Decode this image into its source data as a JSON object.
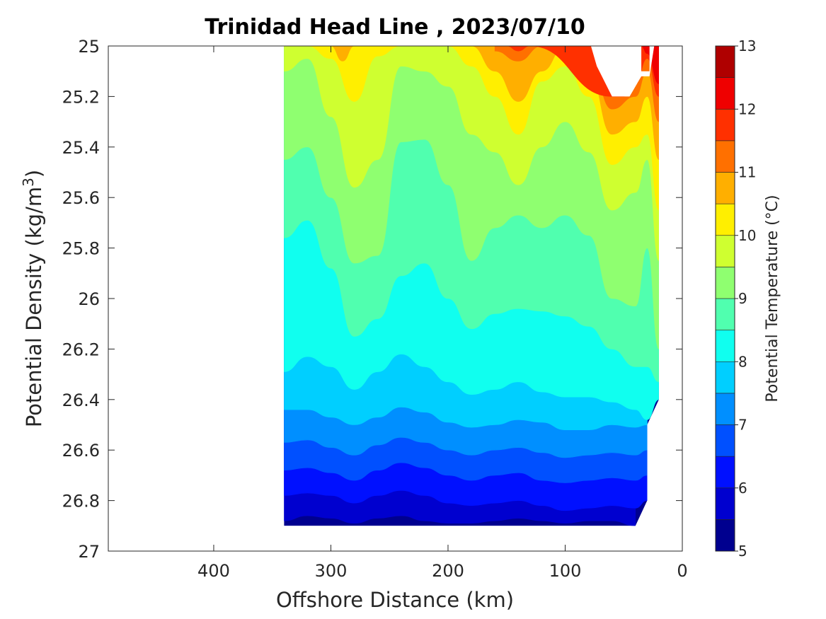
{
  "chart_data": {
    "type": "filled-contour",
    "title": "Trinidad Head Line , 2023/07/10",
    "xlabel": "Offshore Distance (km)",
    "ylabel_main": "Potential Density (kg/m",
    "ylabel_sup": "3",
    "ylabel_end": ")",
    "xlim": [
      490,
      0
    ],
    "ylim": [
      25,
      27
    ],
    "y_reversed": true,
    "xticks": [
      400,
      300,
      200,
      100,
      0
    ],
    "yticks": [
      25,
      25.2,
      25.4,
      25.6,
      25.8,
      26,
      26.2,
      26.4,
      26.6,
      26.8,
      27
    ],
    "ytick_labels": [
      "25",
      "25.2",
      "25.4",
      "25.6",
      "25.8",
      "26",
      "26.2",
      "26.4",
      "26.6",
      "26.8",
      "27"
    ],
    "data_extent": {
      "x": [
        340,
        20
      ],
      "y": [
        25,
        26.9
      ]
    },
    "colorbar": {
      "label": "Potential Temperature (°C)",
      "min": 5,
      "max": 13,
      "ticks": [
        5,
        6,
        7,
        8,
        9,
        10,
        11,
        12,
        13
      ],
      "levels": [
        5,
        5.5,
        6,
        6.5,
        7,
        7.5,
        8,
        8.5,
        9,
        9.5,
        10,
        10.5,
        11,
        11.5,
        12,
        12.5,
        13
      ],
      "colors": [
        "#00008f",
        "#0000cf",
        "#0010ff",
        "#0050ff",
        "#008fff",
        "#00cfff",
        "#10ffef",
        "#50ffaf",
        "#8fff70",
        "#cfff30",
        "#ffef00",
        "#ffaf00",
        "#ff7000",
        "#ff3000",
        "#ef0000",
        "#af0000"
      ]
    },
    "isotherms": [
      {
        "level": 5.5,
        "x": [
          340,
          320,
          300,
          280,
          260,
          240,
          220,
          200,
          180,
          160,
          140,
          120,
          100,
          80,
          60,
          40
        ],
        "y": [
          26.88,
          26.86,
          26.87,
          26.89,
          26.87,
          26.86,
          26.88,
          26.89,
          26.89,
          26.88,
          26.87,
          26.88,
          26.89,
          26.88,
          26.88,
          26.9
        ]
      },
      {
        "level": 6,
        "x": [
          340,
          320,
          300,
          280,
          260,
          240,
          220,
          200,
          180,
          160,
          140,
          120,
          100,
          80,
          60,
          40,
          30
        ],
        "y": [
          26.78,
          26.77,
          26.78,
          26.81,
          26.78,
          26.76,
          26.78,
          26.81,
          26.82,
          26.81,
          26.8,
          26.82,
          26.84,
          26.83,
          26.82,
          26.83,
          26.8
        ]
      },
      {
        "level": 6.5,
        "x": [
          340,
          320,
          300,
          280,
          260,
          240,
          220,
          200,
          180,
          160,
          140,
          120,
          100,
          80,
          60,
          40,
          30
        ],
        "y": [
          26.68,
          26.67,
          26.69,
          26.72,
          26.68,
          26.65,
          26.67,
          26.7,
          26.72,
          26.7,
          26.69,
          26.72,
          26.73,
          26.72,
          26.71,
          26.72,
          26.7
        ]
      },
      {
        "level": 7,
        "x": [
          340,
          320,
          300,
          280,
          260,
          240,
          220,
          200,
          180,
          160,
          140,
          120,
          100,
          80,
          60,
          40,
          30
        ],
        "y": [
          26.57,
          26.56,
          26.59,
          26.62,
          26.58,
          26.55,
          26.57,
          26.6,
          26.62,
          26.6,
          26.59,
          26.61,
          26.63,
          26.62,
          26.61,
          26.62,
          26.6
        ]
      },
      {
        "level": 7.5,
        "x": [
          340,
          320,
          300,
          280,
          260,
          240,
          220,
          200,
          180,
          160,
          140,
          120,
          100,
          80,
          60,
          40,
          30
        ],
        "y": [
          26.44,
          26.44,
          26.47,
          26.5,
          26.47,
          26.43,
          26.45,
          26.49,
          26.51,
          26.5,
          26.48,
          26.49,
          26.52,
          26.52,
          26.5,
          26.51,
          26.5
        ]
      },
      {
        "level": 8,
        "x": [
          340,
          320,
          300,
          280,
          260,
          240,
          220,
          200,
          180,
          160,
          140,
          120,
          100,
          80,
          60,
          40,
          30,
          20
        ],
        "y": [
          26.29,
          26.23,
          26.27,
          26.36,
          26.29,
          26.22,
          26.27,
          26.33,
          26.38,
          26.36,
          26.33,
          26.37,
          26.39,
          26.39,
          26.41,
          26.44,
          26.48,
          26.4
        ]
      },
      {
        "level": 8.5,
        "x": [
          340,
          320,
          300,
          280,
          260,
          240,
          220,
          200,
          180,
          160,
          140,
          120,
          100,
          80,
          60,
          40,
          30,
          20
        ],
        "y": [
          25.76,
          25.69,
          25.88,
          26.15,
          26.08,
          25.91,
          25.86,
          26.0,
          26.12,
          26.06,
          26.04,
          26.05,
          26.07,
          26.11,
          26.2,
          26.27,
          26.27,
          26.33
        ]
      },
      {
        "level": 9,
        "x": [
          340,
          320,
          300,
          280,
          260,
          240,
          220,
          200,
          180,
          160,
          140,
          120,
          100,
          80,
          60,
          40,
          30,
          20
        ],
        "y": [
          25.45,
          25.4,
          25.6,
          25.86,
          25.83,
          25.38,
          25.37,
          25.55,
          25.85,
          25.72,
          25.67,
          25.72,
          25.67,
          25.75,
          26.0,
          26.03,
          25.8,
          26.2
        ]
      },
      {
        "level": 9.5,
        "x": [
          340,
          320,
          300,
          280,
          260,
          240,
          220,
          200,
          180,
          160,
          140,
          120,
          100,
          80,
          60,
          40,
          30,
          20
        ],
        "y": [
          25.1,
          25.05,
          25.28,
          25.56,
          25.45,
          25.08,
          25.1,
          25.16,
          25.35,
          25.42,
          25.55,
          25.4,
          25.3,
          25.42,
          25.65,
          25.58,
          25.45,
          25.85
        ]
      },
      {
        "level": 10,
        "x": [
          340,
          320,
          300,
          280,
          260,
          240,
          220,
          200,
          180,
          160,
          140,
          120,
          100,
          80,
          60,
          40,
          30,
          20
        ],
        "y": [
          25.0,
          25.0,
          25.05,
          25.22,
          25.04,
          25.0,
          25.0,
          25.0,
          25.08,
          25.2,
          25.35,
          25.14,
          25.08,
          25.2,
          25.47,
          25.4,
          25.35,
          25.65
        ]
      },
      {
        "level": 10.5,
        "x": [
          300,
          290,
          280,
          180,
          160,
          140,
          120,
          100,
          80,
          60,
          40,
          30,
          20
        ],
        "y": [
          25.0,
          25.06,
          25.0,
          25.0,
          25.1,
          25.22,
          25.1,
          25.0,
          25.1,
          25.35,
          25.3,
          25.2,
          25.45
        ]
      },
      {
        "level": 11,
        "x": [
          160,
          140,
          120,
          80,
          60,
          40,
          30,
          20
        ],
        "y": [
          25.02,
          25.06,
          25.0,
          25.05,
          25.25,
          25.2,
          25.1,
          25.3
        ]
      },
      {
        "level": 11.5,
        "x": [
          150,
          140,
          130,
          60,
          50,
          40,
          30,
          20
        ],
        "y": [
          25.0,
          25.02,
          25.0,
          25.2,
          25.2,
          25.15,
          25.05,
          25.2
        ]
      },
      {
        "level": 12,
        "x": [
          35,
          30,
          20
        ],
        "y": [
          25.0,
          25.03,
          25.15
        ]
      }
    ]
  }
}
